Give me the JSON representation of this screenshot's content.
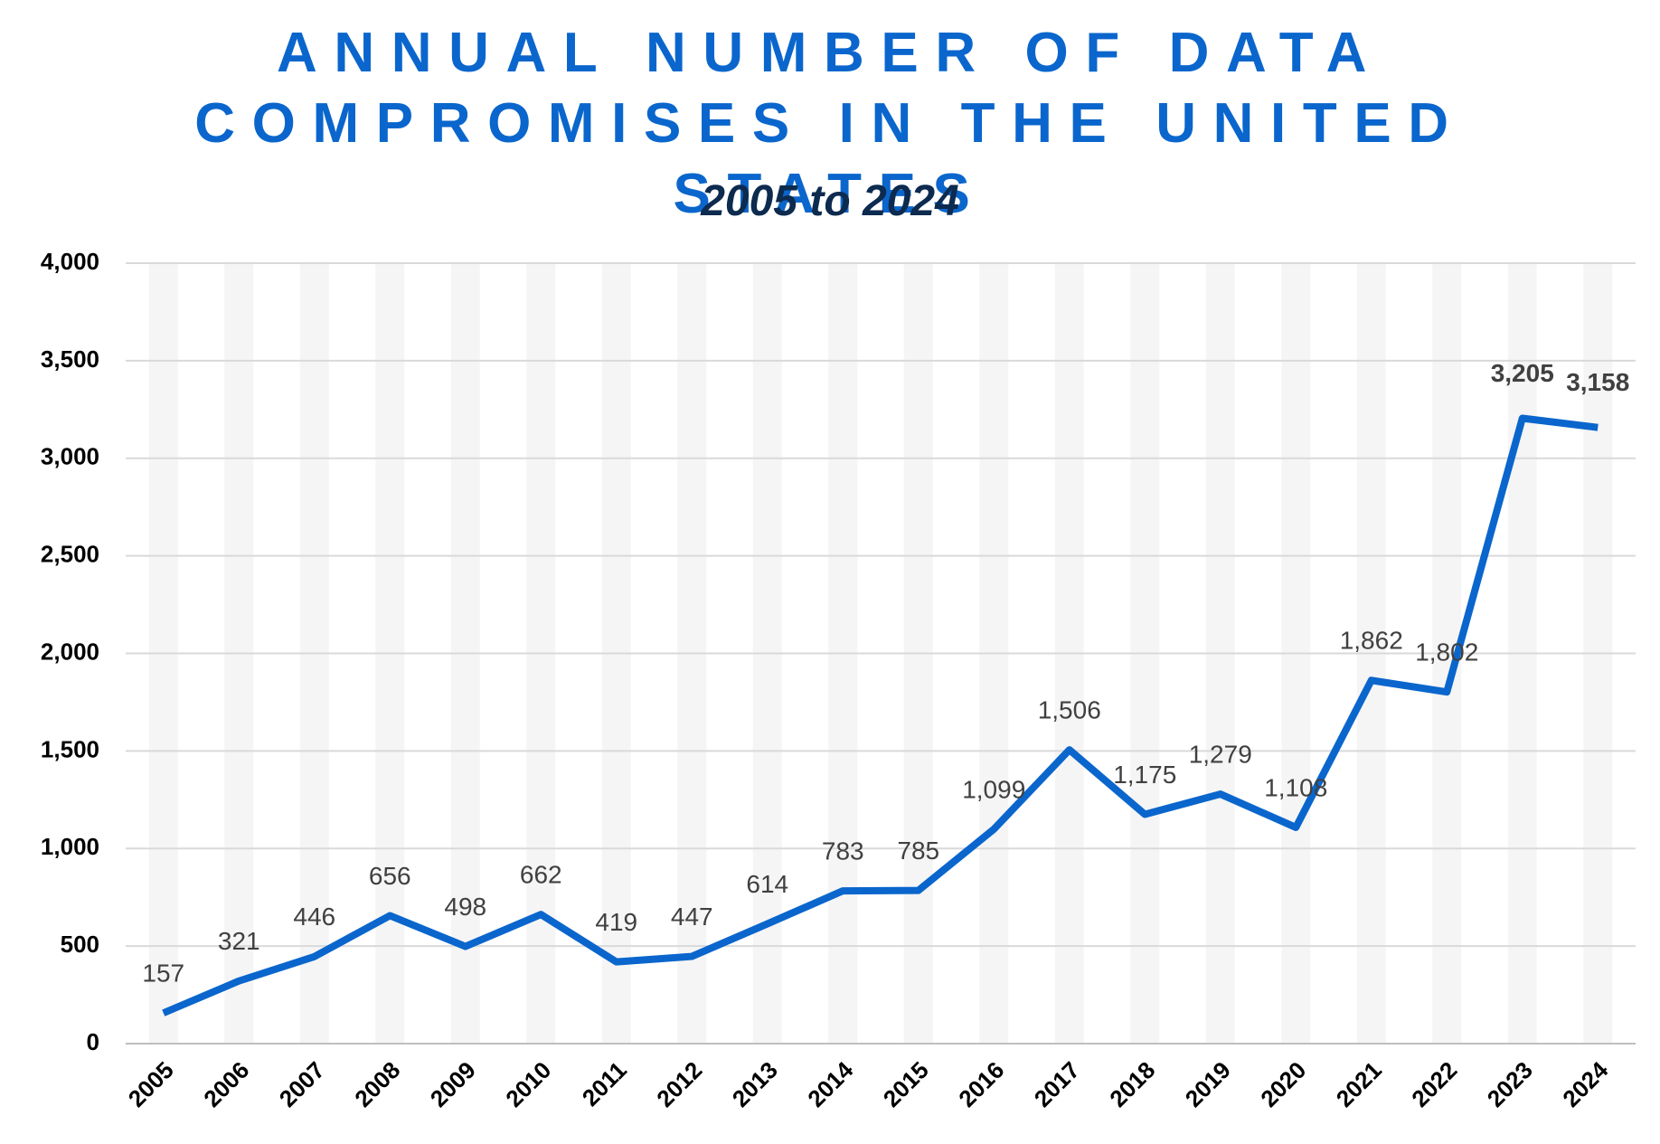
{
  "chart_data": {
    "type": "line",
    "title": "ANNUAL NUMBER OF DATA COMPROMISES IN THE UNITED STATES",
    "subtitle": "2005 to 2024",
    "categories": [
      "2005",
      "2006",
      "2007",
      "2008",
      "2009",
      "2010",
      "2011",
      "2012",
      "2013",
      "2014",
      "2015",
      "2016",
      "2017",
      "2018",
      "2019",
      "2020",
      "2021",
      "2022",
      "2023",
      "2024"
    ],
    "series": [
      {
        "name": "Data compromises",
        "color": "#0a66cc",
        "values": [
          157,
          321,
          446,
          656,
          498,
          662,
          419,
          447,
          614,
          783,
          785,
          1099,
          1506,
          1175,
          1279,
          1108,
          1862,
          1802,
          3205,
          3158
        ],
        "value_labels": [
          "157",
          "321",
          "446",
          "656",
          "498",
          "662",
          "419",
          "447",
          "614",
          "783",
          "785",
          "1,099",
          "1,506",
          "1,175",
          "1,279",
          "1,108",
          "1,862",
          "1,802",
          "3,205",
          "3,158"
        ]
      }
    ],
    "ylim": [
      0,
      4000
    ],
    "yticks": [
      0,
      500,
      {
        "value": 1000,
        "label": "1,000"
      },
      {
        "value": 1500,
        "label": "1,500"
      },
      {
        "value": 2000,
        "label": "2,000"
      },
      {
        "value": 2500,
        "label": "2,500"
      },
      {
        "value": 3000,
        "label": "3,000"
      },
      {
        "value": 3500,
        "label": "3,500"
      },
      {
        "value": 4000,
        "label": "4,000"
      }
    ],
    "grid": true
  }
}
